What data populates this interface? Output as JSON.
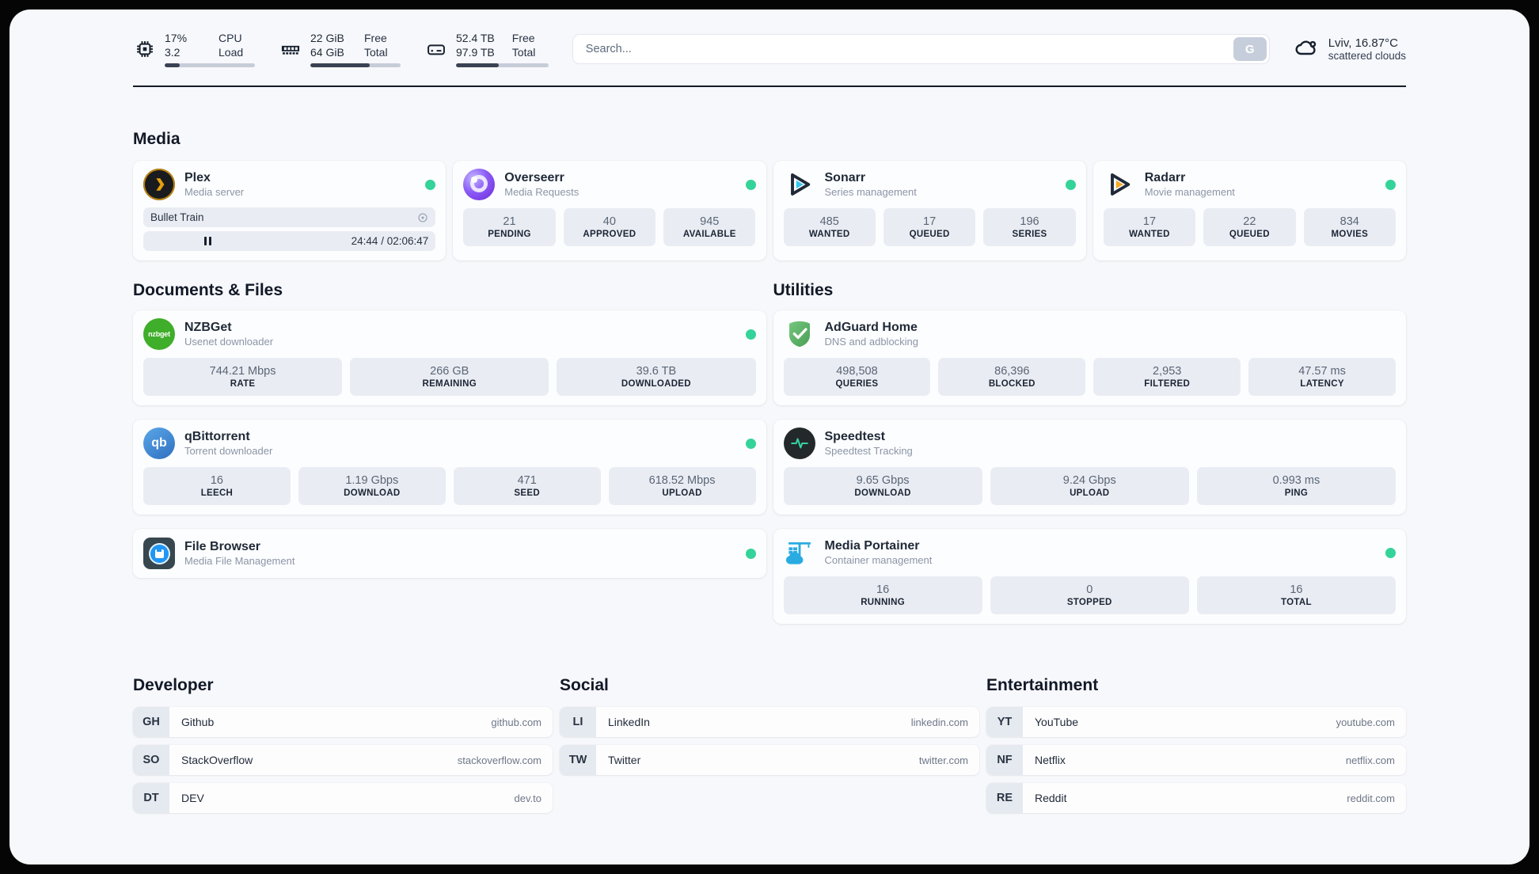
{
  "topbar": {
    "resources": [
      {
        "icon": "cpu-icon",
        "values": [
          "17%",
          "3.2"
        ],
        "labels": [
          "CPU",
          "Load"
        ],
        "used_percent": 17
      },
      {
        "icon": "memory-icon",
        "values": [
          "22 GiB",
          "64 GiB"
        ],
        "labels": [
          "Free",
          "Total"
        ],
        "used_percent": 66
      },
      {
        "icon": "disk-icon",
        "values": [
          "52.4 TB",
          "97.9 TB"
        ],
        "labels": [
          "Free",
          "Total"
        ],
        "used_percent": 46
      }
    ],
    "search": {
      "placeholder": "Search...",
      "engine_button": "G"
    },
    "weather": {
      "icon": "cloud-icon",
      "line1": "Lviv, 16.87°C",
      "line2": "scattered clouds"
    }
  },
  "colors": {
    "status_online": "#34d399",
    "plex_amber": "#e5a00d",
    "sonarr_blue": "#35c5f1",
    "radarr_amber": "#f7a823",
    "portainer_blue": "#29abe2",
    "adguard_green": "#67b279"
  },
  "media": {
    "title": "Media",
    "plex": {
      "name": "Plex",
      "desc": "Media server",
      "status": "online",
      "now_playing": {
        "title": "Bullet Train",
        "time_display": "24:44 / 02:06:47",
        "progress_percent": 19.5,
        "state": "paused"
      }
    },
    "overseerr": {
      "name": "Overseerr",
      "desc": "Media Requests",
      "status": "online",
      "stats": [
        {
          "value": "21",
          "label": "PENDING"
        },
        {
          "value": "40",
          "label": "APPROVED"
        },
        {
          "value": "945",
          "label": "AVAILABLE"
        }
      ]
    },
    "sonarr": {
      "name": "Sonarr",
      "desc": "Series management",
      "status": "online",
      "stats": [
        {
          "value": "485",
          "label": "WANTED"
        },
        {
          "value": "17",
          "label": "QUEUED"
        },
        {
          "value": "196",
          "label": "SERIES"
        }
      ]
    },
    "radarr": {
      "name": "Radarr",
      "desc": "Movie management",
      "status": "online",
      "stats": [
        {
          "value": "17",
          "label": "WANTED"
        },
        {
          "value": "22",
          "label": "QUEUED"
        },
        {
          "value": "834",
          "label": "MOVIES"
        }
      ]
    }
  },
  "documents": {
    "title": "Documents & Files",
    "nzbget": {
      "name": "NZBGet",
      "desc": "Usenet downloader",
      "status": "online",
      "icon_text": "nzbget",
      "stats": [
        {
          "value": "744.21 Mbps",
          "label": "RATE"
        },
        {
          "value": "266 GB",
          "label": "REMAINING"
        },
        {
          "value": "39.6 TB",
          "label": "DOWNLOADED"
        }
      ]
    },
    "qbittorrent": {
      "name": "qBittorrent",
      "desc": "Torrent downloader",
      "status": "online",
      "icon_text": "qb",
      "stats": [
        {
          "value": "16",
          "label": "LEECH"
        },
        {
          "value": "1.19 Gbps",
          "label": "DOWNLOAD"
        },
        {
          "value": "471",
          "label": "SEED"
        },
        {
          "value": "618.52 Mbps",
          "label": "UPLOAD"
        }
      ]
    },
    "filebrowser": {
      "name": "File Browser",
      "desc": "Media File Management",
      "status": "online"
    }
  },
  "utilities": {
    "title": "Utilities",
    "adguard": {
      "name": "AdGuard Home",
      "desc": "DNS and adblocking",
      "stats": [
        {
          "value": "498,508",
          "label": "QUERIES"
        },
        {
          "value": "86,396",
          "label": "BLOCKED"
        },
        {
          "value": "2,953",
          "label": "FILTERED"
        },
        {
          "value": "47.57 ms",
          "label": "LATENCY"
        }
      ]
    },
    "speedtest": {
      "name": "Speedtest",
      "desc": "Speedtest Tracking",
      "stats": [
        {
          "value": "9.65 Gbps",
          "label": "DOWNLOAD"
        },
        {
          "value": "9.24 Gbps",
          "label": "UPLOAD"
        },
        {
          "value": "0.993 ms",
          "label": "PING"
        }
      ]
    },
    "portainer": {
      "name": "Media Portainer",
      "desc": "Container management",
      "status": "online",
      "stats": [
        {
          "value": "16",
          "label": "RUNNING"
        },
        {
          "value": "0",
          "label": "STOPPED"
        },
        {
          "value": "16",
          "label": "TOTAL"
        }
      ]
    }
  },
  "bookmarks": [
    {
      "title": "Developer",
      "items": [
        {
          "abbr": "GH",
          "name": "Github",
          "url": "github.com"
        },
        {
          "abbr": "SO",
          "name": "StackOverflow",
          "url": "stackoverflow.com"
        },
        {
          "abbr": "DT",
          "name": "DEV",
          "url": "dev.to"
        }
      ]
    },
    {
      "title": "Social",
      "items": [
        {
          "abbr": "LI",
          "name": "LinkedIn",
          "url": "linkedin.com"
        },
        {
          "abbr": "TW",
          "name": "Twitter",
          "url": "twitter.com"
        }
      ]
    },
    {
      "title": "Entertainment",
      "items": [
        {
          "abbr": "YT",
          "name": "YouTube",
          "url": "youtube.com"
        },
        {
          "abbr": "NF",
          "name": "Netflix",
          "url": "netflix.com"
        },
        {
          "abbr": "RE",
          "name": "Reddit",
          "url": "reddit.com"
        }
      ]
    }
  ]
}
